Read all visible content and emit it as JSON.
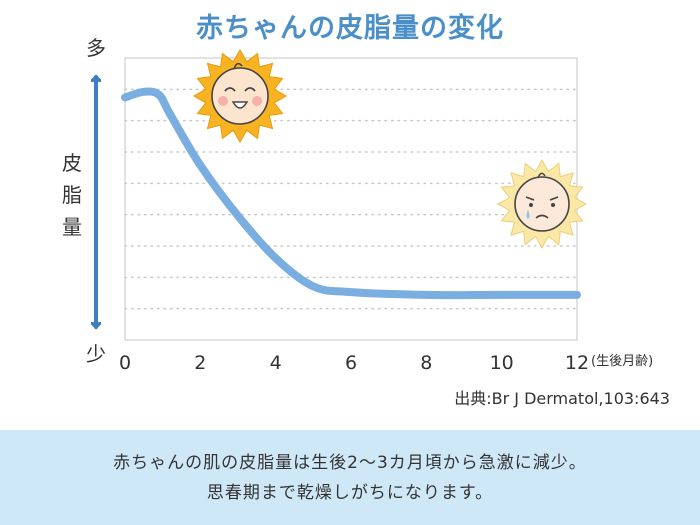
{
  "title": "赤ちゃんの皮脂量の変化",
  "source": "出典:Br J Dermatol,103:643",
  "footer": {
    "line1": "赤ちゃんの肌の皮脂量は生後2〜3カ月頃から急激に減少。",
    "line2": "思春期まで乾燥しがちになります。"
  },
  "colors": {
    "title": "#4a8fc8",
    "line": "#7aaee0",
    "arrow": "#3d7fc1",
    "footer_bg": "#cfe8f7",
    "sun": "#f7b321"
  },
  "icons": [
    "happy-baby-sun-icon",
    "sad-baby-sun-icon"
  ],
  "chart_data": {
    "type": "line",
    "title": "赤ちゃんの皮脂量の変化",
    "xlabel": "(生後月齢)",
    "ylabel": "皮脂量",
    "y_top_label": "多",
    "y_bottom_label": "少",
    "xlim": [
      0,
      12
    ],
    "ylim": [
      0,
      100
    ],
    "x_ticks": [
      0,
      2,
      4,
      6,
      8,
      10,
      12
    ],
    "grid": "horizontal-dotted",
    "series": [
      {
        "x": [
          0,
          0.5,
          0.9,
          1.2,
          2,
          3,
          4,
          5,
          6,
          8,
          10,
          12
        ],
        "y": [
          86,
          88,
          87,
          80,
          62,
          44,
          29,
          19,
          17,
          16,
          16,
          16
        ]
      }
    ]
  }
}
